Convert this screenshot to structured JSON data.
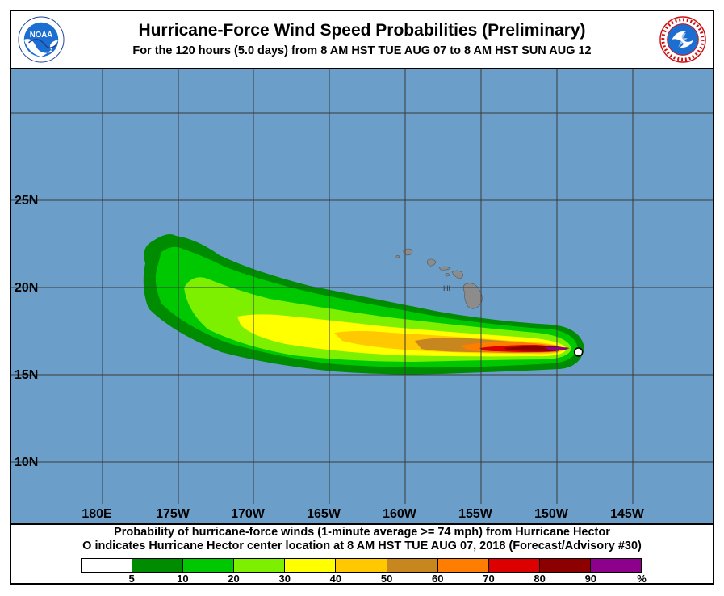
{
  "header": {
    "title": "Hurricane-Force Wind Speed Probabilities (Preliminary)",
    "subtitle": "For the 120 hours (5.0 days) from 8 AM HST TUE AUG 07 to 8 AM HST SUN AUG 12",
    "left_logo": {
      "icon": "noaa-logo",
      "text": "NOAA"
    },
    "right_logo": {
      "icon": "nws-logo",
      "text": "NATIONAL WEATHER SERVICE"
    }
  },
  "map": {
    "ocean_color": "#6b9fca",
    "land_color": "#8c8c8c",
    "island_label": "HI",
    "lat_labels": [
      "25N",
      "20N",
      "15N",
      "10N"
    ],
    "lon_labels": [
      "180E",
      "175W",
      "170W",
      "165W",
      "160W",
      "155W",
      "150W",
      "145W"
    ],
    "storm_center": {
      "lon": -148.6,
      "lat": 16.3,
      "icon": "storm-center-circle-icon"
    }
  },
  "footer": {
    "line1": "Probability of hurricane-force winds (1-minute average >= 74 mph) from Hurricane Hector",
    "line2_symbol": "O",
    "line2": "indicates Hurricane Hector center location at 8 AM HST TUE AUG 07, 2018 (Forecast/Advisory #30)"
  },
  "legend": {
    "colors": [
      "#ffffff",
      "#008c00",
      "#00c800",
      "#7df000",
      "#ffff00",
      "#ffc800",
      "#c8871e",
      "#ff7d00",
      "#dc0000",
      "#8c0000",
      "#8c008c"
    ],
    "labels": [
      "5",
      "10",
      "20",
      "30",
      "40",
      "50",
      "60",
      "70",
      "80",
      "90",
      "%"
    ]
  }
}
